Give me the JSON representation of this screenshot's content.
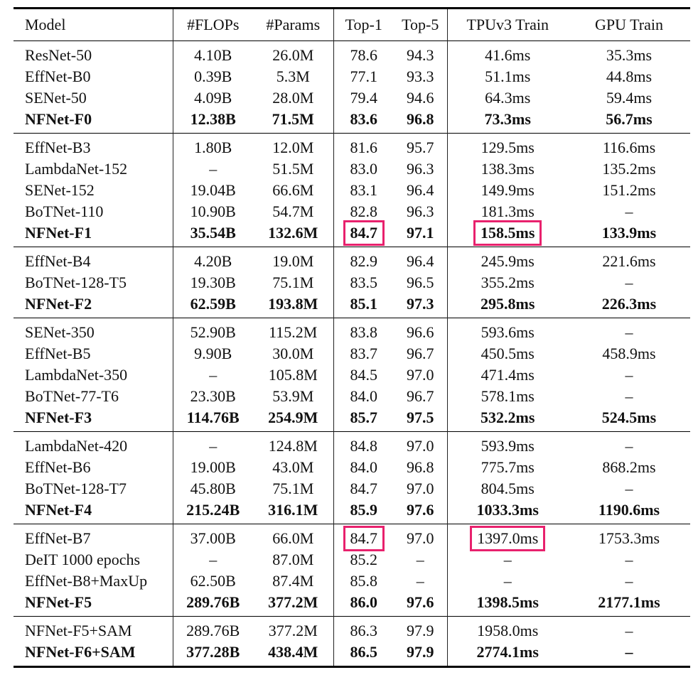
{
  "table": {
    "headers": [
      "Model",
      "#FLOPs",
      "#Params",
      "Top-1",
      "Top-5",
      "TPUv3 Train",
      "GPU Train"
    ],
    "highlight_color": "#e8216d",
    "groups": [
      [
        {
          "bold": false,
          "cells": [
            "ResNet-50",
            "4.10B",
            "26.0M",
            "78.6",
            "94.3",
            "41.6ms",
            "35.3ms"
          ]
        },
        {
          "bold": false,
          "cells": [
            "EffNet-B0",
            "0.39B",
            "5.3M",
            "77.1",
            "93.3",
            "51.1ms",
            "44.8ms"
          ]
        },
        {
          "bold": false,
          "cells": [
            "SENet-50",
            "4.09B",
            "28.0M",
            "79.4",
            "94.6",
            "64.3ms",
            "59.4ms"
          ]
        },
        {
          "bold": true,
          "cells": [
            "NFNet-F0",
            "12.38B",
            "71.5M",
            "83.6",
            "96.8",
            "73.3ms",
            "56.7ms"
          ]
        }
      ],
      [
        {
          "bold": false,
          "cells": [
            "EffNet-B3",
            "1.80B",
            "12.0M",
            "81.6",
            "95.7",
            "129.5ms",
            "116.6ms"
          ]
        },
        {
          "bold": false,
          "cells": [
            "LambdaNet-152",
            "–",
            "51.5M",
            "83.0",
            "96.3",
            "138.3ms",
            "135.2ms"
          ]
        },
        {
          "bold": false,
          "cells": [
            "SENet-152",
            "19.04B",
            "66.6M",
            "83.1",
            "96.4",
            "149.9ms",
            "151.2ms"
          ]
        },
        {
          "bold": false,
          "cells": [
            "BoTNet-110",
            "10.90B",
            "54.7M",
            "82.8",
            "96.3",
            "181.3ms",
            "–"
          ]
        },
        {
          "bold": true,
          "cells": [
            "NFNet-F1",
            "35.54B",
            "132.6M",
            "84.7",
            "97.1",
            "158.5ms",
            "133.9ms"
          ],
          "highlight": [
            3,
            5
          ]
        }
      ],
      [
        {
          "bold": false,
          "cells": [
            "EffNet-B4",
            "4.20B",
            "19.0M",
            "82.9",
            "96.4",
            "245.9ms",
            "221.6ms"
          ]
        },
        {
          "bold": false,
          "cells": [
            "BoTNet-128-T5",
            "19.30B",
            "75.1M",
            "83.5",
            "96.5",
            "355.2ms",
            "–"
          ]
        },
        {
          "bold": true,
          "cells": [
            "NFNet-F2",
            "62.59B",
            "193.8M",
            "85.1",
            "97.3",
            "295.8ms",
            "226.3ms"
          ]
        }
      ],
      [
        {
          "bold": false,
          "cells": [
            "SENet-350",
            "52.90B",
            "115.2M",
            "83.8",
            "96.6",
            "593.6ms",
            "–"
          ]
        },
        {
          "bold": false,
          "cells": [
            "EffNet-B5",
            "9.90B",
            "30.0M",
            "83.7",
            "96.7",
            "450.5ms",
            "458.9ms"
          ]
        },
        {
          "bold": false,
          "cells": [
            "LambdaNet-350",
            "–",
            "105.8M",
            "84.5",
            "97.0",
            "471.4ms",
            "–"
          ]
        },
        {
          "bold": false,
          "cells": [
            "BoTNet-77-T6",
            "23.30B",
            "53.9M",
            "84.0",
            "96.7",
            "578.1ms",
            "–"
          ]
        },
        {
          "bold": true,
          "cells": [
            "NFNet-F3",
            "114.76B",
            "254.9M",
            "85.7",
            "97.5",
            "532.2ms",
            "524.5ms"
          ]
        }
      ],
      [
        {
          "bold": false,
          "cells": [
            "LambdaNet-420",
            "–",
            "124.8M",
            "84.8",
            "97.0",
            "593.9ms",
            "–"
          ]
        },
        {
          "bold": false,
          "cells": [
            "EffNet-B6",
            "19.00B",
            "43.0M",
            "84.0",
            "96.8",
            "775.7ms",
            "868.2ms"
          ]
        },
        {
          "bold": false,
          "cells": [
            "BoTNet-128-T7",
            "45.80B",
            "75.1M",
            "84.7",
            "97.0",
            "804.5ms",
            "–"
          ]
        },
        {
          "bold": true,
          "cells": [
            "NFNet-F4",
            "215.24B",
            "316.1M",
            "85.9",
            "97.6",
            "1033.3ms",
            "1190.6ms"
          ]
        }
      ],
      [
        {
          "bold": false,
          "cells": [
            "EffNet-B7",
            "37.00B",
            "66.0M",
            "84.7",
            "97.0",
            "1397.0ms",
            "1753.3ms"
          ],
          "highlight": [
            3,
            5
          ]
        },
        {
          "bold": false,
          "cells": [
            "DeIT 1000 epochs",
            "–",
            "87.0M",
            "85.2",
            "–",
            "–",
            "–"
          ]
        },
        {
          "bold": false,
          "cells": [
            "EffNet-B8+MaxUp",
            "62.50B",
            "87.4M",
            "85.8",
            "–",
            "–",
            "–"
          ]
        },
        {
          "bold": true,
          "cells": [
            "NFNet-F5",
            "289.76B",
            "377.2M",
            "86.0",
            "97.6",
            "1398.5ms",
            "2177.1ms"
          ]
        }
      ],
      [
        {
          "bold": false,
          "cells": [
            "NFNet-F5+SAM",
            "289.76B",
            "377.2M",
            "86.3",
            "97.9",
            "1958.0ms",
            "–"
          ]
        },
        {
          "bold": true,
          "cells": [
            "NFNet-F6+SAM",
            "377.28B",
            "438.4M",
            "86.5",
            "97.9",
            "2774.1ms",
            "–"
          ]
        }
      ]
    ]
  }
}
